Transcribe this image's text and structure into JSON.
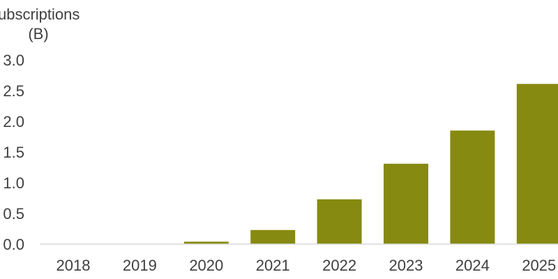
{
  "chart_data": {
    "type": "bar",
    "title": "",
    "ylabel_lines": [
      "ubscriptions",
      "(B)"
    ],
    "xlabel": "",
    "categories": [
      "2018",
      "2019",
      "2020",
      "2021",
      "2022",
      "2023",
      "2024",
      "2025"
    ],
    "values": [
      0.0,
      0.0,
      0.04,
      0.23,
      0.73,
      1.31,
      1.85,
      2.61
    ],
    "ylim": [
      0,
      3.0
    ],
    "yticks": [
      "0.0",
      "0.5",
      "1.0",
      "1.5",
      "2.0",
      "2.5",
      "3.0"
    ],
    "grid": false,
    "legend": "none",
    "bar_color": "#878A10"
  }
}
